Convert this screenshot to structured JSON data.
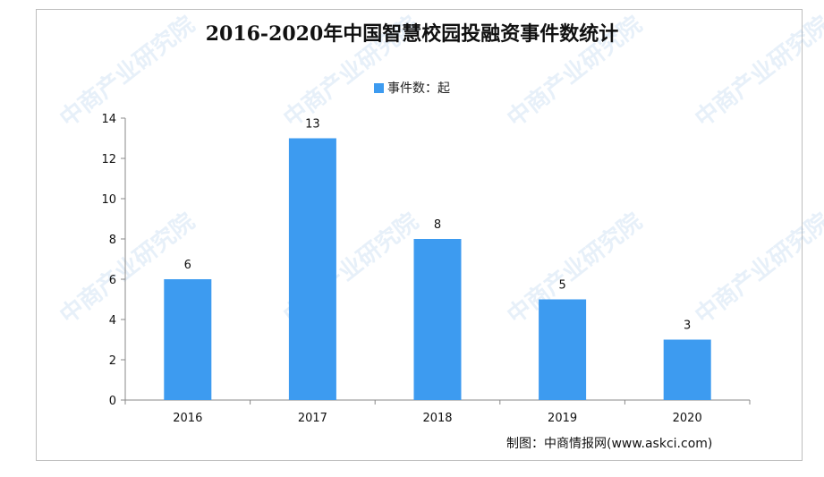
{
  "chart_data": {
    "type": "bar",
    "title": "2016-2020年中国智慧校园投融资事件数统计",
    "legend": "事件数：起",
    "categories": [
      "2016",
      "2017",
      "2018",
      "2019",
      "2020"
    ],
    "values": [
      6,
      13,
      8,
      5,
      3
    ],
    "ylim": [
      0,
      14
    ],
    "yticks": [
      0,
      2,
      4,
      6,
      8,
      10,
      12,
      14
    ],
    "grid": false,
    "legend_position": "top-center",
    "bar_color": "#3d9bf0"
  },
  "source": "制图：中商情报网(www.askci.com)",
  "watermark_text": [
    "中商产业研究院",
    "中商产业研究院",
    "中商产业研究院",
    "中商产业研究院",
    "中商产业研究院",
    "中商产业研究院",
    "中商产业研究院",
    "中商产业研究院"
  ]
}
